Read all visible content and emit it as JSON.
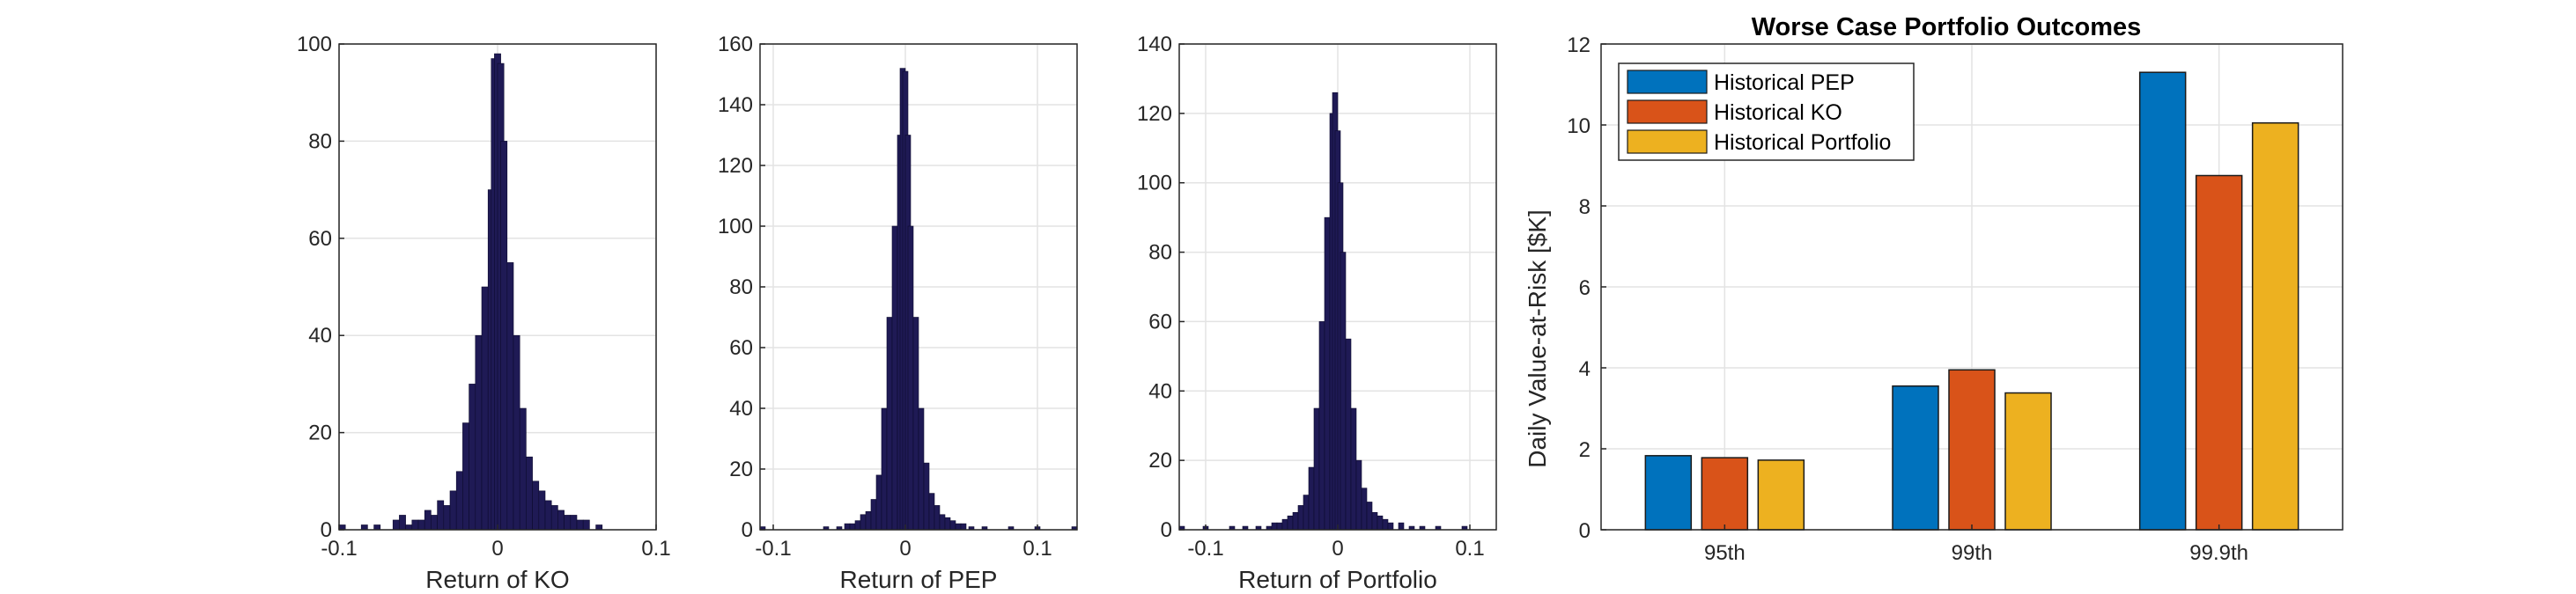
{
  "chart_data": [
    {
      "type": "bar",
      "subtype": "histogram",
      "xlabel": "Return of KO",
      "ylabel": "",
      "xlim": [
        -0.1,
        0.1
      ],
      "ylim": [
        0,
        100
      ],
      "xticks": [
        "-0.1",
        "0",
        "0.1"
      ],
      "yticks": [
        "0",
        "20",
        "40",
        "60",
        "80",
        "100"
      ],
      "grid": true,
      "bar_color": "#1f1a55",
      "x": [
        -0.098,
        -0.084,
        -0.076,
        -0.064,
        -0.06,
        -0.056,
        -0.052,
        -0.048,
        -0.044,
        -0.04,
        -0.036,
        -0.032,
        -0.028,
        -0.024,
        -0.02,
        -0.016,
        -0.012,
        -0.008,
        -0.004,
        -0.002,
        0.0,
        0.002,
        0.004,
        0.008,
        0.012,
        0.016,
        0.02,
        0.024,
        0.028,
        0.032,
        0.036,
        0.04,
        0.044,
        0.048,
        0.052,
        0.056,
        0.064
      ],
      "values": [
        1,
        1,
        1,
        2,
        3,
        1,
        2,
        2,
        4,
        3,
        6,
        5,
        8,
        12,
        22,
        30,
        40,
        50,
        70,
        97,
        98,
        96,
        80,
        55,
        40,
        25,
        15,
        10,
        8,
        6,
        5,
        4,
        3,
        3,
        2,
        2,
        1
      ]
    },
    {
      "type": "bar",
      "subtype": "histogram",
      "xlabel": "Return of PEP",
      "ylabel": "",
      "xlim": [
        -0.11,
        0.13
      ],
      "ylim": [
        0,
        160
      ],
      "xticks": [
        "-0.1",
        "0",
        "0.1"
      ],
      "yticks": [
        "0",
        "20",
        "40",
        "60",
        "80",
        "100",
        "120",
        "140",
        "160"
      ],
      "grid": true,
      "bar_color": "#1f1a55",
      "x": [
        -0.108,
        -0.06,
        -0.05,
        -0.044,
        -0.04,
        -0.036,
        -0.032,
        -0.028,
        -0.024,
        -0.02,
        -0.016,
        -0.012,
        -0.008,
        -0.004,
        -0.002,
        0.0,
        0.002,
        0.004,
        0.008,
        0.012,
        0.016,
        0.02,
        0.024,
        0.028,
        0.032,
        0.036,
        0.04,
        0.044,
        0.05,
        0.06,
        0.08,
        0.1,
        0.128
      ],
      "values": [
        1,
        1,
        1,
        2,
        2,
        3,
        5,
        6,
        10,
        18,
        40,
        70,
        100,
        130,
        152,
        151,
        130,
        100,
        70,
        40,
        22,
        12,
        8,
        5,
        4,
        3,
        2,
        2,
        1,
        1,
        1,
        1,
        1
      ]
    },
    {
      "type": "bar",
      "subtype": "histogram",
      "xlabel": "Return of Portfolio",
      "ylabel": "",
      "xlim": [
        -0.12,
        0.12
      ],
      "ylim": [
        0,
        140
      ],
      "xticks": [
        "-0.1",
        "0",
        "0.1"
      ],
      "yticks": [
        "0",
        "20",
        "40",
        "60",
        "80",
        "100",
        "120",
        "140"
      ],
      "grid": true,
      "bar_color": "#1f1a55",
      "x": [
        -0.118,
        -0.1,
        -0.08,
        -0.07,
        -0.06,
        -0.052,
        -0.048,
        -0.044,
        -0.04,
        -0.036,
        -0.032,
        -0.028,
        -0.024,
        -0.02,
        -0.016,
        -0.012,
        -0.008,
        -0.004,
        -0.002,
        0.0,
        0.002,
        0.004,
        0.008,
        0.012,
        0.016,
        0.02,
        0.024,
        0.028,
        0.032,
        0.036,
        0.04,
        0.048,
        0.056,
        0.064,
        0.076,
        0.096
      ],
      "values": [
        1,
        1,
        1,
        1,
        1,
        1,
        2,
        2,
        3,
        4,
        5,
        7,
        10,
        18,
        35,
        60,
        90,
        120,
        126,
        115,
        100,
        80,
        55,
        35,
        20,
        12,
        8,
        5,
        4,
        3,
        2,
        2,
        1,
        1,
        1,
        1
      ]
    },
    {
      "type": "bar",
      "title": "Worse Case Portfolio Outcomes",
      "xlabel": "",
      "ylabel": "Daily Value-at-Risk [$K]",
      "ylim": [
        0,
        12
      ],
      "yticks": [
        "0",
        "2",
        "4",
        "6",
        "8",
        "10",
        "12"
      ],
      "grid": true,
      "legend": "top-left",
      "categories": [
        "95th",
        "99th",
        "99.9th"
      ],
      "series": [
        {
          "name": "Historical PEP",
          "color": "#0072bd",
          "values": [
            1.83,
            3.55,
            11.3
          ]
        },
        {
          "name": "Historical KO",
          "color": "#d95319",
          "values": [
            1.78,
            3.95,
            8.75
          ]
        },
        {
          "name": "Historical Portfolio",
          "color": "#edb120",
          "values": [
            1.72,
            3.38,
            10.05
          ]
        }
      ]
    }
  ]
}
